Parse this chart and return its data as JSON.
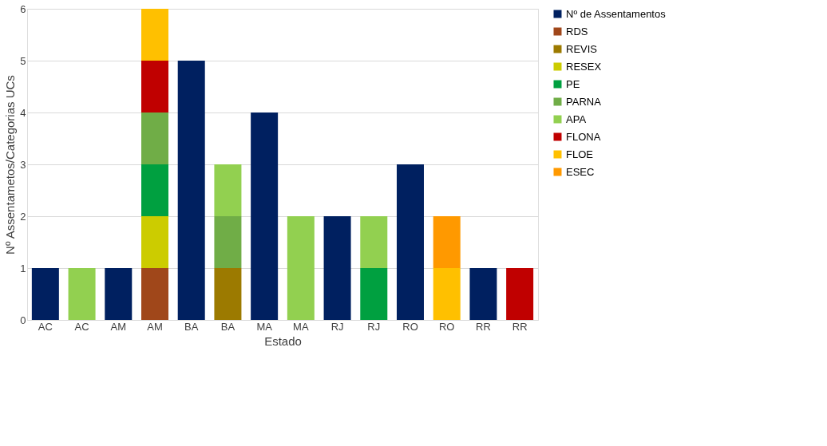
{
  "chart_data": {
    "type": "bar",
    "stacked": true,
    "xlabel": "Estado",
    "ylabel": "Nº Assentametos/Categorias UCs",
    "categories": [
      "AC",
      "AC",
      "AM",
      "AM",
      "BA",
      "BA",
      "MA",
      "MA",
      "RJ",
      "RJ",
      "RO",
      "RO",
      "RR",
      "RR"
    ],
    "series": [
      {
        "name": "Nº de Assentamentos",
        "color": "#002060",
        "values": [
          1,
          null,
          1,
          null,
          5,
          null,
          4,
          null,
          2,
          null,
          3,
          null,
          1,
          null
        ]
      },
      {
        "name": "RDS",
        "color": "#a0471a",
        "values": [
          null,
          null,
          null,
          1,
          null,
          null,
          null,
          null,
          null,
          null,
          null,
          null,
          null,
          null
        ]
      },
      {
        "name": "REVIS",
        "color": "#9c7a00",
        "values": [
          null,
          null,
          null,
          null,
          null,
          1,
          null,
          null,
          null,
          null,
          null,
          null,
          null,
          null
        ]
      },
      {
        "name": "RESEX",
        "color": "#cccc00",
        "values": [
          null,
          null,
          null,
          1,
          null,
          null,
          null,
          null,
          null,
          null,
          null,
          null,
          null,
          null
        ]
      },
      {
        "name": "PE",
        "color": "#00a040",
        "values": [
          null,
          null,
          null,
          1,
          null,
          null,
          null,
          null,
          null,
          1,
          null,
          null,
          null,
          null
        ]
      },
      {
        "name": "PARNA",
        "color": "#70ad47",
        "values": [
          null,
          null,
          null,
          1,
          null,
          1,
          null,
          null,
          null,
          null,
          null,
          null,
          null,
          null
        ]
      },
      {
        "name": "APA",
        "color": "#92d050",
        "values": [
          null,
          1,
          null,
          null,
          null,
          1,
          null,
          2,
          null,
          1,
          null,
          null,
          null,
          null
        ]
      },
      {
        "name": "FLONA",
        "color": "#c00000",
        "values": [
          null,
          null,
          null,
          1,
          null,
          null,
          null,
          null,
          null,
          null,
          null,
          null,
          null,
          1
        ]
      },
      {
        "name": "FLOE",
        "color": "#ffc000",
        "values": [
          null,
          null,
          null,
          1,
          null,
          null,
          null,
          null,
          null,
          null,
          null,
          1,
          null,
          null
        ]
      },
      {
        "name": "ESEC",
        "color": "#ff9900",
        "values": [
          null,
          null,
          null,
          null,
          null,
          null,
          null,
          null,
          null,
          null,
          null,
          1,
          null,
          null
        ]
      }
    ],
    "ylim": [
      0,
      6
    ],
    "yticks": [
      0,
      1,
      2,
      3,
      4,
      5,
      6
    ],
    "grid": "y",
    "legend": "right"
  }
}
